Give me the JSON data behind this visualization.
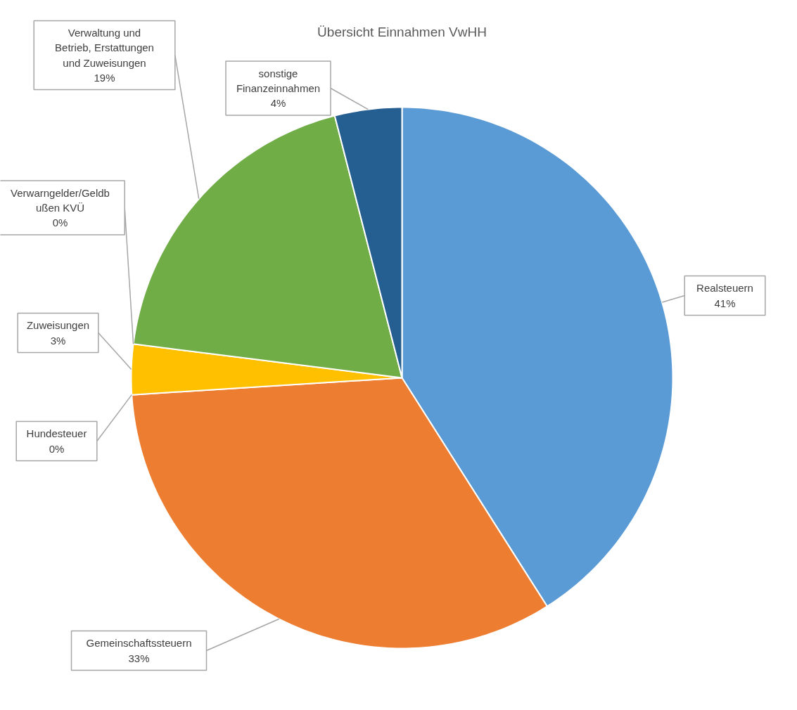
{
  "chart_data": {
    "type": "pie",
    "title": "Übersicht Einnahmen VwHH",
    "categories": [
      "Realsteuern",
      "Gemeinschaftssteuern",
      "Hundesteuer",
      "Zuweisungen",
      "Verwarngelder/Geldbußen KVÜ",
      "Verwaltung und Betrieb, Erstattungen und Zuweisungen",
      "sonstige Finanzeinnahmen"
    ],
    "values": [
      41,
      33,
      0,
      3,
      0,
      19,
      4
    ],
    "colors": [
      "#5b9bd5",
      "#ed7d31",
      "#a5a5a5",
      "#ffc000",
      "#4472c4",
      "#70ad47",
      "#255e91"
    ],
    "value_labels": [
      "41%",
      "33%",
      "0%",
      "3%",
      "0%",
      "19%",
      "4%"
    ]
  }
}
